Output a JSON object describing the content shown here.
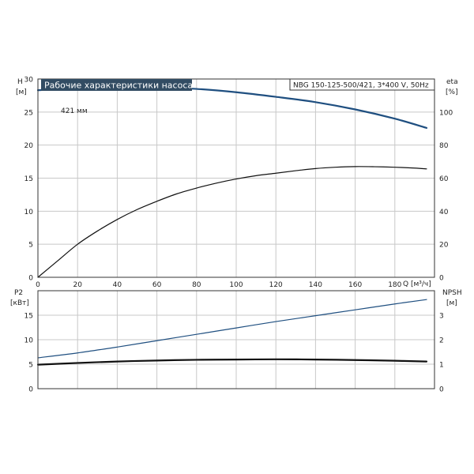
{
  "chart_data": [
    {
      "type": "line",
      "title": "Рабочие характеристики насоса",
      "model": "NBG 150-125-500/421, 3*400 V, 50Hz",
      "xlabel": "Q [м³/ч]",
      "xlim": [
        0,
        200
      ],
      "x_ticks": [
        0,
        20,
        40,
        60,
        80,
        100,
        120,
        140,
        160,
        180
      ],
      "left_axis": {
        "label_line1": "H",
        "label_line2": "[м]",
        "ylim": [
          0,
          30
        ],
        "ticks": [
          0,
          5,
          10,
          15,
          20,
          25,
          30
        ]
      },
      "right_axis": {
        "label_line1": "eta",
        "label_line2": "[%]",
        "ylim": [
          0,
          120
        ],
        "ticks": [
          0,
          20,
          40,
          60,
          80,
          100
        ]
      },
      "grid": true,
      "annotations": [
        {
          "text": "421 мм"
        }
      ],
      "series": [
        {
          "axis": "left",
          "color": "#1f4f80",
          "x": [
            0,
            20,
            40,
            60,
            80,
            100,
            120,
            140,
            160,
            180,
            196
          ],
          "values": [
            28.3,
            28.7,
            28.8,
            28.75,
            28.5,
            28.0,
            27.3,
            26.5,
            25.4,
            24.0,
            22.6
          ]
        },
        {
          "axis": "right",
          "color": "#111111",
          "x": [
            0,
            10,
            20,
            30,
            40,
            50,
            60,
            70,
            80,
            90,
            100,
            110,
            120,
            130,
            140,
            150,
            160,
            170,
            180,
            190,
            196
          ],
          "values": [
            0,
            10,
            20,
            28,
            35,
            41,
            46,
            50.5,
            54,
            57,
            59.5,
            61.5,
            63,
            64.5,
            65.8,
            66.6,
            67,
            66.9,
            66.6,
            66.1,
            65.6
          ]
        }
      ]
    },
    {
      "type": "line",
      "xlim": [
        0,
        200
      ],
      "x_ticks": [
        0,
        20,
        40,
        60,
        80,
        100,
        120,
        140,
        160,
        180
      ],
      "left_axis": {
        "label_line1": "P2",
        "label_line2": "[кВт]",
        "ylim": [
          0,
          20
        ],
        "ticks": [
          0,
          5,
          10,
          15
        ]
      },
      "right_axis": {
        "label_line1": "NPSH",
        "label_line2": "[м]",
        "ylim": [
          0,
          4
        ],
        "ticks": [
          0,
          1,
          2,
          3
        ]
      },
      "grid": true,
      "series": [
        {
          "axis": "left",
          "color": "#1f4f80",
          "x": [
            0,
            20,
            40,
            60,
            80,
            100,
            120,
            140,
            160,
            180,
            196
          ],
          "values": [
            6.3,
            7.3,
            8.5,
            9.8,
            11.1,
            12.4,
            13.7,
            14.9,
            16.1,
            17.3,
            18.2
          ]
        },
        {
          "axis": "right",
          "color": "#111111",
          "x": [
            0,
            20,
            40,
            60,
            80,
            100,
            120,
            140,
            160,
            180,
            196
          ],
          "values": [
            0.98,
            1.05,
            1.11,
            1.15,
            1.18,
            1.19,
            1.2,
            1.19,
            1.17,
            1.14,
            1.11
          ]
        }
      ]
    }
  ]
}
